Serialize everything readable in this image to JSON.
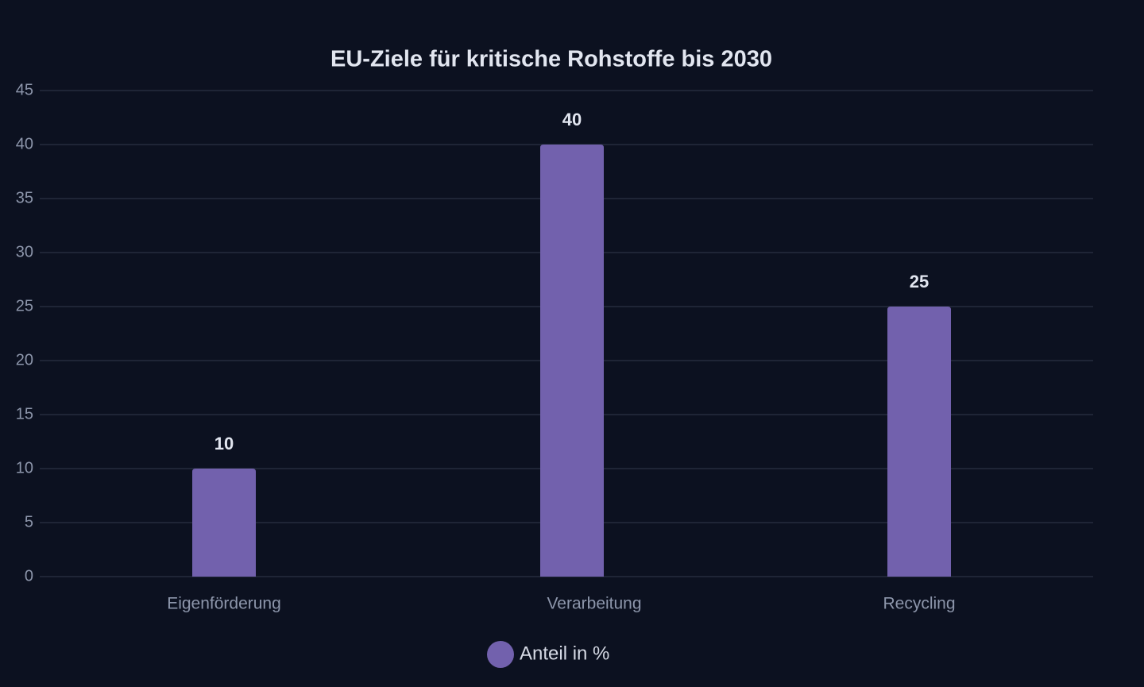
{
  "chart_data": {
    "type": "bar",
    "title": "EU-Ziele für kritische Rohstoffe bis 2030",
    "categories": [
      "Eigenförderung",
      "Verarbeitung",
      "Recycling"
    ],
    "series": [
      {
        "name": "Anteil in %",
        "color": "#7261ad",
        "values": [
          10,
          40,
          25
        ]
      }
    ],
    "ylim": [
      0,
      45
    ],
    "yticks": [
      0,
      5,
      10,
      15,
      20,
      25,
      30,
      35,
      40,
      45
    ],
    "grid": true,
    "legend": "bottom"
  }
}
